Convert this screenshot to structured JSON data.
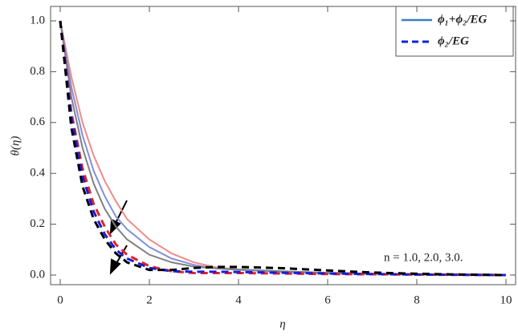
{
  "chart_data": {
    "type": "line",
    "x_label": "η",
    "y_label": "θ(η)",
    "x": [
      0,
      0.25,
      0.5,
      0.75,
      1,
      1.25,
      1.5,
      2,
      2.5,
      3,
      3.5,
      4,
      5,
      6,
      7,
      8,
      9,
      10
    ],
    "series": [
      {
        "color": "#f28a8a",
        "dash": false,
        "values": [
          1,
          0.78,
          0.6,
          0.47,
          0.37,
          0.29,
          0.22,
          0.14,
          0.085,
          0.05,
          0.03,
          0.022,
          0.013,
          0.008,
          0.005,
          0.003,
          0.001,
          0
        ]
      },
      {
        "color": "#7f90e0",
        "dash": false,
        "values": [
          1,
          0.74,
          0.55,
          0.41,
          0.31,
          0.23,
          0.18,
          0.11,
          0.065,
          0.04,
          0.026,
          0.02,
          0.013,
          0.008,
          0.005,
          0.003,
          0.001,
          0
        ]
      },
      {
        "color": "#808080",
        "dash": false,
        "values": [
          1,
          0.7,
          0.5,
          0.36,
          0.26,
          0.19,
          0.14,
          0.08,
          0.05,
          0.033,
          0.026,
          0.022,
          0.015,
          0.009,
          0.005,
          0.003,
          0.001,
          0
        ]
      },
      {
        "color": "#e8202a",
        "dash": true,
        "values": [
          1,
          0.64,
          0.42,
          0.28,
          0.19,
          0.12,
          0.08,
          0.035,
          0.015,
          0.008,
          0.008,
          0.008,
          0.006,
          0.004,
          0.003,
          0.002,
          0.001,
          0
        ]
      },
      {
        "color": "#1020e0",
        "dash": true,
        "values": [
          1,
          0.62,
          0.39,
          0.25,
          0.16,
          0.1,
          0.065,
          0.028,
          0.015,
          0.013,
          0.013,
          0.012,
          0.009,
          0.006,
          0.004,
          0.002,
          0.001,
          0
        ]
      },
      {
        "color": "#000000",
        "dash": true,
        "values": [
          1,
          0.58,
          0.35,
          0.22,
          0.14,
          0.085,
          0.05,
          0.02,
          0.02,
          0.028,
          0.032,
          0.032,
          0.027,
          0.018,
          0.01,
          0.005,
          0.002,
          0
        ]
      }
    ],
    "legend": [
      {
        "label": "ϕ₁+ϕ₂/EG",
        "color": "#3a7fc1",
        "dash": false
      },
      {
        "label": "ϕ₂/EG",
        "color": "#1020e0",
        "dash": true
      }
    ],
    "annotation": "n = 1.0, 2.0, 3.0.",
    "xlim": [
      0,
      10
    ],
    "xticks": [
      0,
      2,
      4,
      6,
      8,
      10
    ],
    "ylim": [
      0,
      1
    ],
    "yticks": [
      {
        "value": 0,
        "label": "0.0"
      },
      0.2,
      0.4,
      0.6,
      0.8,
      {
        "value": 1,
        "label": "1.0"
      }
    ]
  }
}
